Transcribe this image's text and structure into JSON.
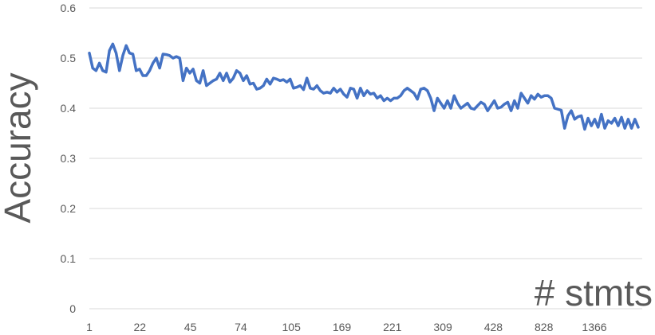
{
  "chart_data": {
    "type": "line",
    "title": "",
    "xlabel": "# stmts",
    "ylabel": "Accuracy",
    "ylim": [
      0,
      0.6
    ],
    "yticks": [
      "0",
      "0.1",
      "0.2",
      "0.3",
      "0.4",
      "0.5",
      "0.6"
    ],
    "xtick_labels": [
      "1",
      "22",
      "45",
      "74",
      "105",
      "169",
      "221",
      "309",
      "428",
      "828",
      "1366"
    ],
    "grid": true,
    "line_color": "#4472C4",
    "grid_color": "#D9D9D9",
    "series": [
      {
        "values": [
          0.51,
          0.48,
          0.475,
          0.49,
          0.475,
          0.472,
          0.515,
          0.528,
          0.51,
          0.475,
          0.505,
          0.525,
          0.51,
          0.508,
          0.475,
          0.478,
          0.465,
          0.465,
          0.475,
          0.49,
          0.5,
          0.48,
          0.508,
          0.507,
          0.505,
          0.5,
          0.503,
          0.5,
          0.455,
          0.48,
          0.47,
          0.478,
          0.455,
          0.45,
          0.475,
          0.445,
          0.45,
          0.455,
          0.458,
          0.47,
          0.455,
          0.47,
          0.452,
          0.46,
          0.475,
          0.47,
          0.455,
          0.465,
          0.448,
          0.45,
          0.438,
          0.44,
          0.445,
          0.458,
          0.448,
          0.46,
          0.458,
          0.455,
          0.457,
          0.452,
          0.458,
          0.44,
          0.442,
          0.445,
          0.437,
          0.46,
          0.44,
          0.438,
          0.445,
          0.435,
          0.43,
          0.432,
          0.43,
          0.44,
          0.432,
          0.438,
          0.428,
          0.422,
          0.44,
          0.438,
          0.42,
          0.44,
          0.425,
          0.435,
          0.428,
          0.43,
          0.42,
          0.425,
          0.415,
          0.42,
          0.415,
          0.42,
          0.42,
          0.425,
          0.435,
          0.44,
          0.435,
          0.43,
          0.418,
          0.438,
          0.44,
          0.435,
          0.42,
          0.395,
          0.42,
          0.41,
          0.4,
          0.415,
          0.4,
          0.425,
          0.41,
          0.4,
          0.405,
          0.41,
          0.4,
          0.398,
          0.405,
          0.412,
          0.408,
          0.395,
          0.405,
          0.415,
          0.4,
          0.402,
          0.408,
          0.412,
          0.395,
          0.415,
          0.4,
          0.43,
          0.42,
          0.41,
          0.425,
          0.418,
          0.428,
          0.422,
          0.425,
          0.425,
          0.42,
          0.4,
          0.398,
          0.396,
          0.36,
          0.385,
          0.395,
          0.378,
          0.383,
          0.385,
          0.358,
          0.38,
          0.365,
          0.378,
          0.362,
          0.388,
          0.36,
          0.375,
          0.37,
          0.38,
          0.365,
          0.382,
          0.36,
          0.378,
          0.36,
          0.378,
          0.362
        ]
      }
    ]
  }
}
